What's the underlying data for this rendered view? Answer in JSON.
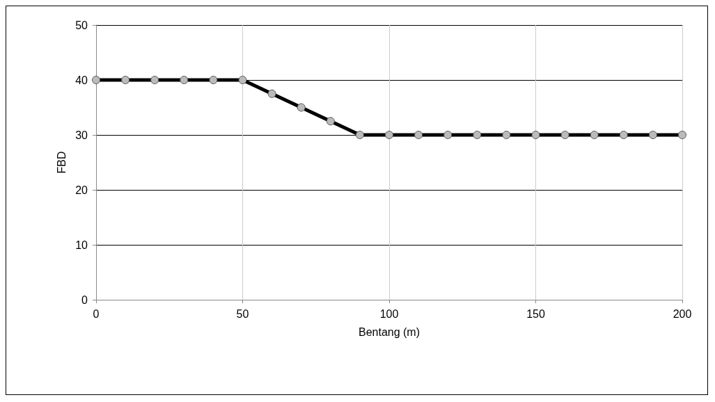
{
  "chart_data": {
    "type": "line",
    "xlabel": "Bentang (m)",
    "ylabel": "FBD",
    "x": [
      0,
      10,
      20,
      30,
      40,
      50,
      60,
      70,
      80,
      90,
      100,
      110,
      120,
      130,
      140,
      150,
      160,
      170,
      180,
      190,
      200
    ],
    "series": [
      {
        "color": "#000000",
        "values": [
          40,
          40,
          40,
          40,
          40,
          40,
          37.5,
          35,
          32.5,
          30,
          30,
          30,
          30,
          30,
          30,
          30,
          30,
          30,
          30,
          30,
          30
        ]
      }
    ],
    "xlim": [
      0,
      200
    ],
    "xticks": [
      0,
      50,
      100,
      150,
      200
    ],
    "ylim": [
      0,
      50
    ],
    "yticks": [
      0,
      10,
      20,
      30,
      40,
      50
    ],
    "grid": true,
    "marker": "circle",
    "line_style": "solid"
  }
}
